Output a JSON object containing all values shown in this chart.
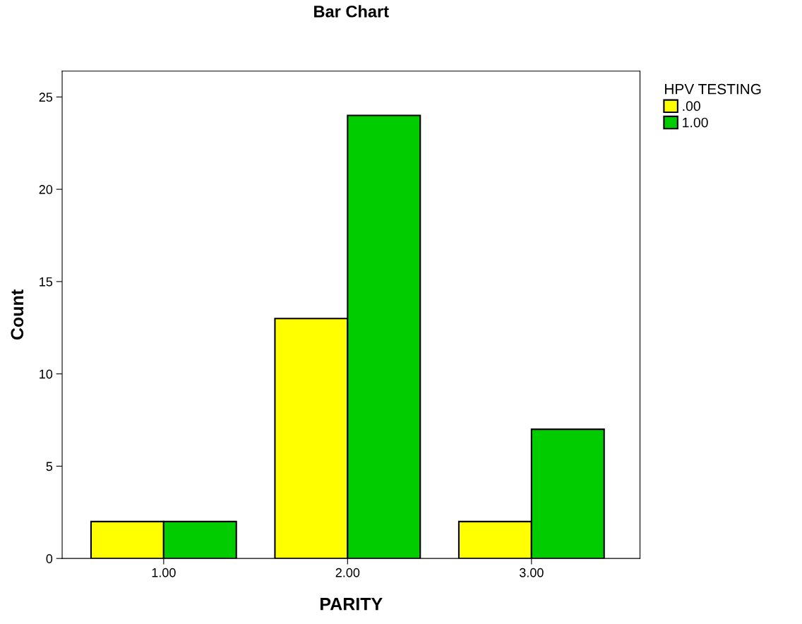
{
  "chart_data": {
    "type": "bar",
    "title": "Bar Chart",
    "xlabel": "PARITY",
    "ylabel": "Count",
    "legend_title": "HPV TESTING",
    "categories": [
      "1.00",
      "2.00",
      "3.00"
    ],
    "series": [
      {
        "name": ".00",
        "color": "#ffff00",
        "values": [
          2,
          13,
          2
        ]
      },
      {
        "name": "1.00",
        "color": "#00cc00",
        "values": [
          2,
          24,
          7
        ]
      }
    ],
    "ylim": [
      0,
      26.4
    ],
    "yticks": [
      0,
      5,
      10,
      15,
      20,
      25
    ],
    "grid": false,
    "legend": "top right"
  }
}
